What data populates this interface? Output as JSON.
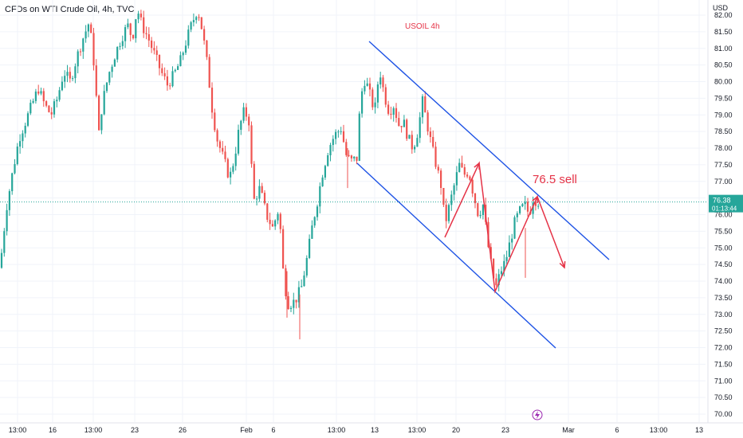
{
  "header": {
    "symbol": "CFDs on WTI Crude Oil, 4h, TVC",
    "currency": "USD"
  },
  "colors": {
    "up": "#26a69a",
    "down": "#ef5350",
    "annotation": "#e53347",
    "channel": "#1e53e5",
    "grid": "#f0f3fa",
    "axis_text": "#131722",
    "price_tag": "#26a69a"
  },
  "chart_data": {
    "type": "candlestick",
    "title": "USOIL 4h",
    "y_axis": {
      "unit": "USD",
      "range": [
        69.8,
        82.15
      ],
      "ticks": [
        82.0,
        81.5,
        81.0,
        80.5,
        80.0,
        79.5,
        79.0,
        78.5,
        78.0,
        77.5,
        77.0,
        76.5,
        76.0,
        75.5,
        75.0,
        74.5,
        74.0,
        73.5,
        73.0,
        72.5,
        72.0,
        71.5,
        71.0,
        70.5,
        70.0
      ],
      "tick_labels": [
        "82.00",
        "81.50",
        "81.00",
        "80.50",
        "80.00",
        "79.50",
        "79.00",
        "78.50",
        "78.00",
        "77.50",
        "77.00",
        "76.50",
        "76.00",
        "75.50",
        "75.00",
        "74.50",
        "74.00",
        "73.50",
        "73.00",
        "72.50",
        "72.00",
        "71.50",
        "71.00",
        "70.50",
        "70.00"
      ]
    },
    "x_axis": {
      "tick_labels": [
        "13:00",
        "16",
        "13:00",
        "23",
        "26",
        "Feb",
        "6",
        "13:00",
        "13",
        "13:00",
        "20",
        "23",
        "Mar",
        "6",
        "13:00",
        "13"
      ]
    },
    "current_price": {
      "value": 76.38,
      "label": "76.38",
      "countdown": "01:13:44"
    },
    "price_path": [
      [
        0,
        74.4
      ],
      [
        8,
        76.2
      ],
      [
        16,
        77.3
      ],
      [
        24,
        78.3
      ],
      [
        32,
        78.8
      ],
      [
        40,
        79.3
      ],
      [
        48,
        79.8
      ],
      [
        56,
        79.3
      ],
      [
        64,
        79.0
      ],
      [
        72,
        79.5
      ],
      [
        80,
        80.3
      ],
      [
        88,
        80.0
      ],
      [
        96,
        80.7
      ],
      [
        104,
        81.3
      ],
      [
        112,
        81.8
      ],
      [
        118,
        80.5
      ],
      [
        124,
        78.4
      ],
      [
        128,
        79.3
      ],
      [
        136,
        80.2
      ],
      [
        144,
        80.8
      ],
      [
        152,
        81.3
      ],
      [
        160,
        81.7
      ],
      [
        166,
        81.3
      ],
      [
        172,
        82.2
      ],
      [
        178,
        81.7
      ],
      [
        186,
        81.3
      ],
      [
        194,
        80.8
      ],
      [
        202,
        80.3
      ],
      [
        210,
        79.9
      ],
      [
        218,
        80.2
      ],
      [
        226,
        80.6
      ],
      [
        232,
        81.1
      ],
      [
        240,
        81.7
      ],
      [
        248,
        82.2
      ],
      [
        254,
        81.5
      ],
      [
        260,
        80.5
      ],
      [
        266,
        79.2
      ],
      [
        272,
        78.3
      ],
      [
        280,
        77.7
      ],
      [
        288,
        77.1
      ],
      [
        294,
        77.7
      ],
      [
        300,
        78.6
      ],
      [
        306,
        79.1
      ],
      [
        312,
        78.9
      ],
      [
        318,
        76.4
      ],
      [
        326,
        76.8
      ],
      [
        334,
        76.0
      ],
      [
        342,
        75.6
      ],
      [
        350,
        76.2
      ],
      [
        356,
        74.0
      ],
      [
        362,
        73.3
      ],
      [
        370,
        73.4
      ],
      [
        378,
        73.8
      ],
      [
        386,
        74.8
      ],
      [
        392,
        75.7
      ],
      [
        398,
        76.4
      ],
      [
        404,
        77.2
      ],
      [
        412,
        78.0
      ],
      [
        420,
        78.4
      ],
      [
        428,
        78.6
      ],
      [
        434,
        77.8
      ],
      [
        440,
        77.6
      ],
      [
        448,
        77.7
      ],
      [
        452,
        79.5
      ],
      [
        458,
        80.1
      ],
      [
        464,
        79.6
      ],
      [
        470,
        79.1
      ],
      [
        476,
        80.4
      ],
      [
        482,
        79.6
      ],
      [
        488,
        79.1
      ],
      [
        494,
        79.3
      ],
      [
        500,
        78.7
      ],
      [
        506,
        78.8
      ],
      [
        512,
        78.3
      ],
      [
        518,
        78.0
      ],
      [
        524,
        78.5
      ],
      [
        530,
        79.4
      ],
      [
        536,
        78.7
      ],
      [
        542,
        78.0
      ],
      [
        548,
        77.4
      ],
      [
        554,
        76.8
      ],
      [
        558,
        75.7
      ],
      [
        564,
        76.3
      ],
      [
        570,
        76.9
      ],
      [
        576,
        77.5
      ],
      [
        582,
        77.2
      ],
      [
        588,
        77.3
      ],
      [
        594,
        76.6
      ],
      [
        600,
        76.0
      ],
      [
        606,
        76.3
      ],
      [
        612,
        75.1
      ],
      [
        618,
        74.2
      ],
      [
        622,
        73.8
      ],
      [
        628,
        74.3
      ],
      [
        634,
        74.6
      ],
      [
        640,
        75.2
      ],
      [
        646,
        75.8
      ],
      [
        652,
        76.1
      ],
      [
        658,
        76.3
      ],
      [
        664,
        76.0
      ],
      [
        668,
        76.5
      ],
      [
        674,
        76.4
      ],
      [
        679,
        76.38
      ]
    ]
  },
  "annotations": {
    "chart_title": "USOIL 4h",
    "sell_label": "76.5 sell"
  }
}
